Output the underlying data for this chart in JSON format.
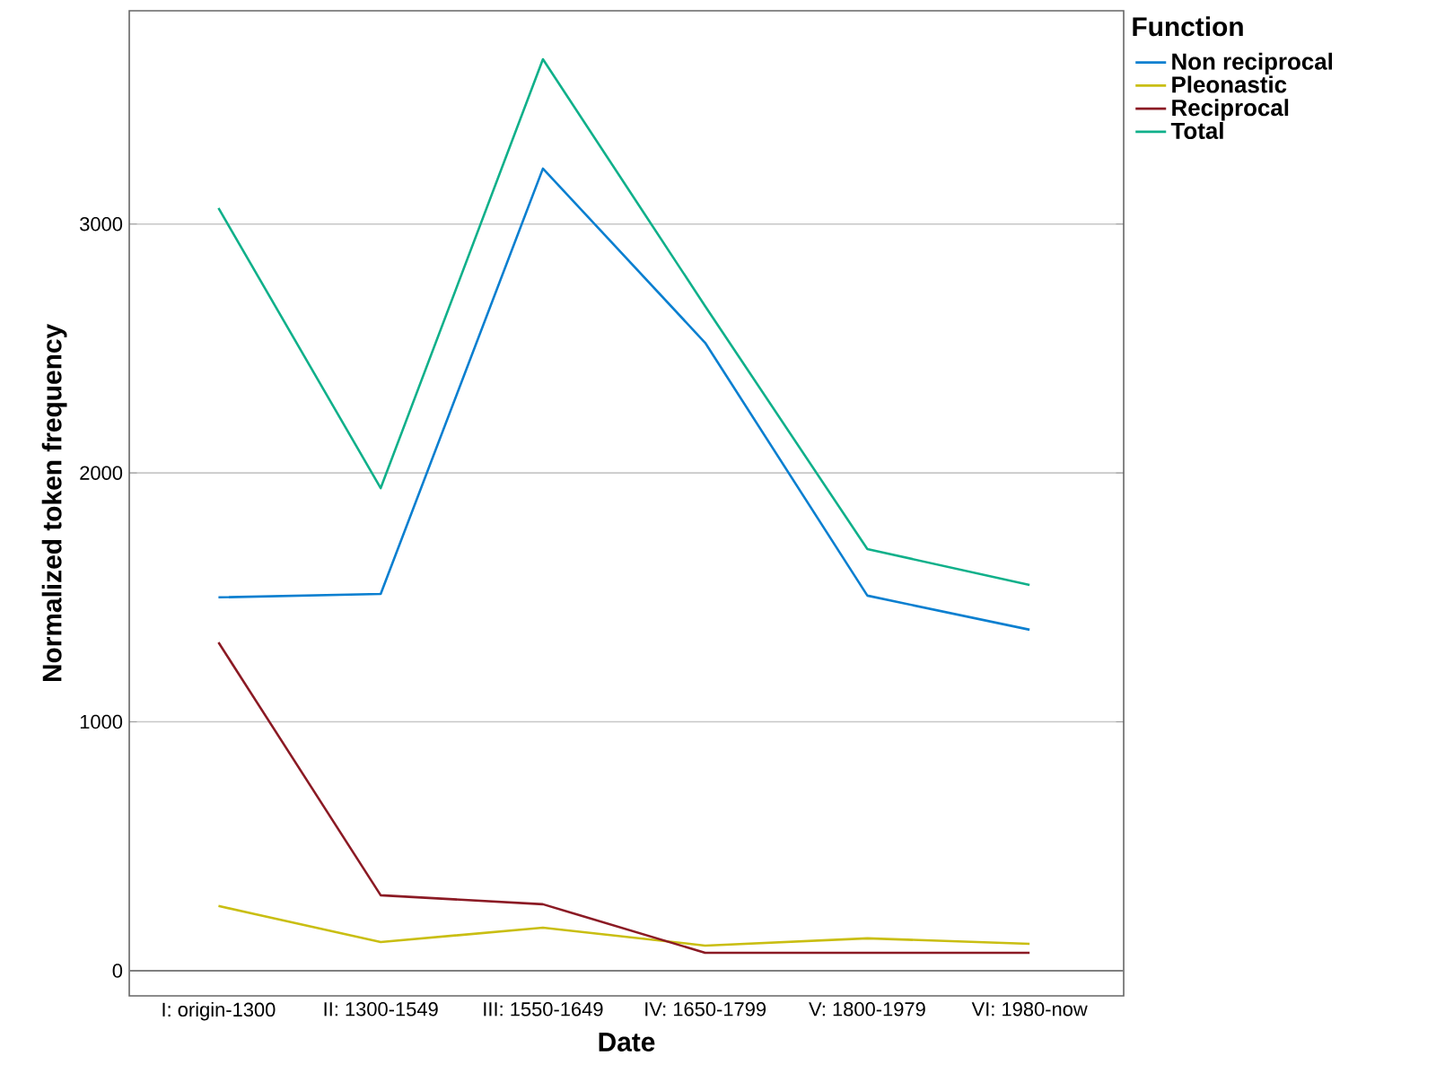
{
  "chart_data": {
    "type": "line",
    "xlabel": "Date",
    "ylabel": "Normalized token frequency",
    "legend_title": "Function",
    "categories": [
      "I: origin-1300",
      "II: 1300-1549",
      "III: 1550-1649",
      "IV: 1650-1799",
      "V: 1800-1979",
      "VI: 1980-now"
    ],
    "series": [
      {
        "name": "Non reciprocal",
        "color": "#0a7fd0",
        "values": [
          1500,
          1514,
          3223,
          2523,
          1507,
          1370
        ]
      },
      {
        "name": "Pleonastic",
        "color": "#c9be12",
        "values": [
          260,
          115,
          173,
          101,
          130,
          108
        ]
      },
      {
        "name": "Reciprocal",
        "color": "#8b1a24",
        "values": [
          1319,
          303,
          267,
          72,
          72,
          72
        ]
      },
      {
        "name": "Total",
        "color": "#10b08a",
        "values": [
          3064,
          1939,
          3662,
          2670,
          1694,
          1550
        ]
      }
    ],
    "ylim": [
      -101,
      3857
    ],
    "yticks": [
      0,
      1000,
      2000,
      3000
    ],
    "grid": "y",
    "legend": "top right",
    "marker": "none",
    "line_style": "solid",
    "ref_lines": [
      {
        "axis": "y",
        "value": 0,
        "color": "#7f7f7f"
      }
    ]
  }
}
